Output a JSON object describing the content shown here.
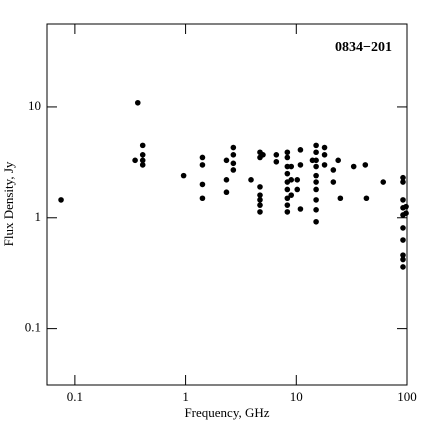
{
  "chart_data": {
    "type": "scatter",
    "annotation": "0834−201",
    "xlabel": "Frequency, GHz",
    "ylabel": "Flux Density, Jy",
    "log_x": true,
    "log_y": true,
    "color": "#000000",
    "xlim": [
      0.056,
      100
    ],
    "ylim": [
      0.031,
      56
    ],
    "xticks": [
      0.1,
      1,
      10,
      100
    ],
    "yticks": [
      0.1,
      1,
      10
    ],
    "x": [
      0.075,
      0.37,
      0.35,
      0.41,
      0.41,
      0.41,
      0.41,
      0.96,
      1.42,
      1.42,
      1.42,
      1.42,
      2.34,
      2.34,
      2.34,
      2.7,
      2.7,
      2.7,
      2.7,
      3.9,
      4.7,
      4.7,
      4.7,
      4.7,
      4.7,
      4.7,
      4.7,
      5.0,
      6.6,
      6.6,
      8.3,
      8.3,
      8.3,
      8.3,
      8.3,
      8.3,
      8.3,
      8.3,
      8.3,
      9.0,
      9.0,
      9.0,
      10.2,
      10.2,
      10.9,
      10.9,
      10.9,
      14,
      15.1,
      15.1,
      15.1,
      15.1,
      15.1,
      15.1,
      15.1,
      15.1,
      15.1,
      15.1,
      18,
      18,
      18,
      21.6,
      21.6,
      23.9,
      25,
      33,
      42,
      43,
      61,
      92,
      92,
      92,
      92,
      92,
      92,
      92,
      92,
      92,
      92,
      98,
      98
    ],
    "values": [
      1.45,
      10.9,
      3.3,
      4.5,
      3.7,
      3.3,
      3.0,
      2.4,
      3.5,
      3.0,
      2.0,
      1.5,
      3.3,
      2.2,
      1.7,
      4.3,
      3.7,
      3.1,
      2.7,
      2.2,
      3.9,
      3.5,
      1.9,
      1.6,
      1.45,
      1.3,
      1.13,
      3.7,
      3.7,
      3.2,
      3.9,
      3.5,
      2.9,
      2.5,
      2.1,
      1.8,
      1.5,
      1.3,
      1.13,
      2.9,
      2.2,
      1.6,
      2.2,
      1.8,
      4.1,
      3.0,
      1.2,
      3.3,
      4.5,
      3.9,
      3.3,
      2.9,
      2.4,
      2.1,
      1.8,
      1.45,
      1.18,
      0.92,
      4.3,
      3.7,
      3.0,
      2.7,
      2.1,
      3.3,
      1.5,
      2.9,
      3.0,
      1.5,
      2.1,
      2.3,
      2.1,
      1.45,
      1.23,
      1.06,
      0.81,
      0.63,
      0.46,
      0.42,
      0.36,
      1.26,
      1.1
    ]
  }
}
